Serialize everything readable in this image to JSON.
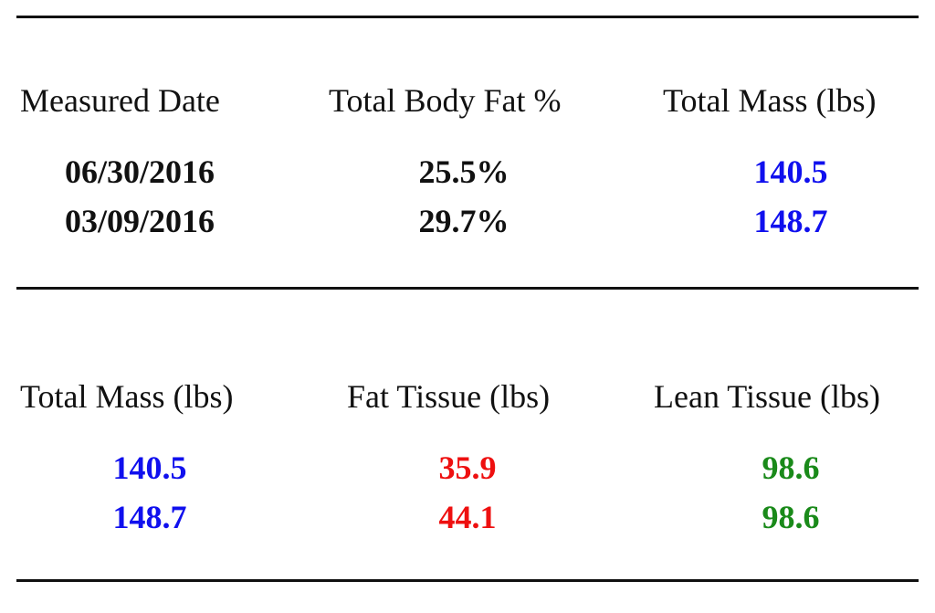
{
  "table1": {
    "headers": [
      "Measured Date",
      "Total Body Fat %",
      "Total Mass (lbs)"
    ],
    "rows": [
      [
        "06/30/2016",
        "25.5%",
        "140.5"
      ],
      [
        "03/09/2016",
        "29.7%",
        "148.7"
      ]
    ]
  },
  "table2": {
    "headers": [
      "Total Mass (lbs)",
      "Fat Tissue (lbs)",
      "Lean Tissue (lbs)"
    ],
    "rows": [
      [
        "140.5",
        "35.9",
        "98.6"
      ],
      [
        "148.7",
        "44.1",
        "98.6"
      ]
    ]
  },
  "colors": {
    "text": "#111111",
    "mass": "#1010ee",
    "fat": "#ee1010",
    "lean": "#1a8a1a"
  }
}
